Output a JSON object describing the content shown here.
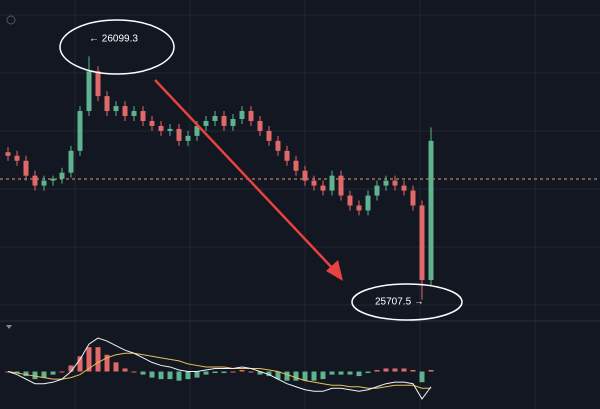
{
  "chart_data": {
    "type": "candlestick",
    "high_label": "← 26099.3",
    "low_label": "25707.5 →",
    "up_color": "#5fb38f",
    "down_color": "#e06a6a",
    "ylim": [
      25675,
      26190
    ],
    "price_line": 25902,
    "open": [
      25945,
      25939.3,
      25931.3,
      25907.3,
      25891.3,
      25899.3,
      25902.5,
      25912.1,
      25947.3,
      26011.3,
      26075.3,
      26035.3,
      26011.3,
      26019.3,
      26003.3,
      26011.3,
      25995.3,
      25987.3,
      25979.3,
      25982.5,
      25963.3,
      25971.3,
      25987.3,
      25995.3,
      26003.3,
      25987.3,
      25998.5,
      26011.3,
      25995.3,
      25979.3,
      25963.3,
      25947.3,
      25931.3,
      25915.3,
      25899.3,
      25891.3,
      25883.3,
      25907.3,
      25875.3,
      25859.3,
      25851.3,
      25875.3,
      25891.3,
      25899.3,
      25891.3,
      25883.3,
      25859.3,
      25739.3
    ],
    "high": [
      25953,
      25947.3,
      25939.3,
      25915.3,
      25907.3,
      25907.3,
      25920.1,
      25955.3,
      26019.3,
      26099.3,
      26083.3,
      26043.3,
      26027.3,
      26027.3,
      26019.3,
      26019.3,
      26003.3,
      25995.3,
      25990.5,
      25990.5,
      25979.3,
      25995.3,
      26003.3,
      26011.3,
      26011.3,
      26006.5,
      26019.3,
      26019.3,
      26003.3,
      25987.3,
      25971.3,
      25955.3,
      25939.3,
      25923.3,
      25907.3,
      25899.3,
      25915.3,
      25915.3,
      25883.3,
      25867.3,
      25883.3,
      25899.3,
      25907.3,
      25907.3,
      25899.3,
      25891.3,
      25867.3,
      25985
    ],
    "low": [
      25931.3,
      25923.3,
      25899.3,
      25883.3,
      25883.3,
      25891.3,
      25894.5,
      25904.1,
      25939.3,
      26003.3,
      26027.3,
      26003.3,
      26003.3,
      25995.3,
      25995.3,
      25987.3,
      25979.3,
      25971.3,
      25971.3,
      25955.3,
      25955.3,
      25963.3,
      25979.3,
      25987.3,
      25979.3,
      25979.3,
      25990.5,
      25987.3,
      25971.3,
      25955.3,
      25939.3,
      25923.3,
      25907.3,
      25891.3,
      25883.3,
      25875.3,
      25875.3,
      25867.3,
      25851.3,
      25843.3,
      25843.3,
      25867.3,
      25883.3,
      25883.3,
      25875.3,
      25851.3,
      25707.5,
      25731.3
    ],
    "close": [
      25939.3,
      25931.3,
      25907.3,
      25891.3,
      25899.3,
      25902.5,
      25912.1,
      25947.3,
      26011.3,
      26075.3,
      26035.3,
      26011.3,
      26019.3,
      26003.3,
      26011.3,
      25995.3,
      25987.3,
      25979.3,
      25982.5,
      25963.3,
      25971.3,
      25987.3,
      25995.3,
      26003.3,
      25987.3,
      25998.5,
      26011.3,
      25995.3,
      25979.3,
      25963.3,
      25947.3,
      25931.3,
      25915.3,
      25899.3,
      25891.3,
      25883.3,
      25907.3,
      25875.3,
      25859.3,
      25851.3,
      25875.3,
      25891.3,
      25899.3,
      25891.3,
      25883.3,
      25859.3,
      25739.3,
      25963.3
    ],
    "macd_ylim": [
      -22,
      24
    ],
    "macd": [
      0,
      -2,
      -5,
      -8,
      -8,
      -7,
      -5,
      0,
      8,
      18,
      22,
      20,
      17,
      14,
      12,
      9,
      6,
      4,
      3,
      1,
      0,
      0,
      1,
      2,
      2,
      2,
      3,
      2,
      0,
      -2,
      -5,
      -8,
      -10,
      -12,
      -13,
      -13,
      -11,
      -11,
      -12,
      -13,
      -12,
      -10,
      -8,
      -7,
      -7,
      -8,
      -18,
      -10
    ],
    "signal": [
      0,
      -1,
      -2,
      -3,
      -4,
      -5,
      -5,
      -4,
      -2,
      2,
      6,
      9,
      11,
      12,
      12,
      11,
      10,
      9,
      8,
      7,
      5,
      4,
      3,
      3,
      3,
      2,
      2,
      2,
      2,
      1,
      0,
      -2,
      -4,
      -6,
      -7,
      -8,
      -9,
      -9,
      -10,
      -10,
      -11,
      -11,
      -10,
      -9,
      -9,
      -9,
      -11,
      -11
    ],
    "histogram": [
      0,
      -1,
      -3,
      -5,
      -4,
      -2,
      0,
      4,
      10,
      16,
      16,
      11,
      6,
      2,
      0,
      -2,
      -4,
      -5,
      -5,
      -6,
      -5,
      -4,
      -2,
      -1,
      -1,
      0,
      1,
      0,
      -2,
      -3,
      -5,
      -6,
      -6,
      -6,
      -6,
      -5,
      -2,
      -2,
      -2,
      -3,
      -1,
      1,
      2,
      2,
      2,
      1,
      -7,
      1
    ],
    "macd_color": "#f4f4f4",
    "signal_color": "#e8c15a"
  }
}
